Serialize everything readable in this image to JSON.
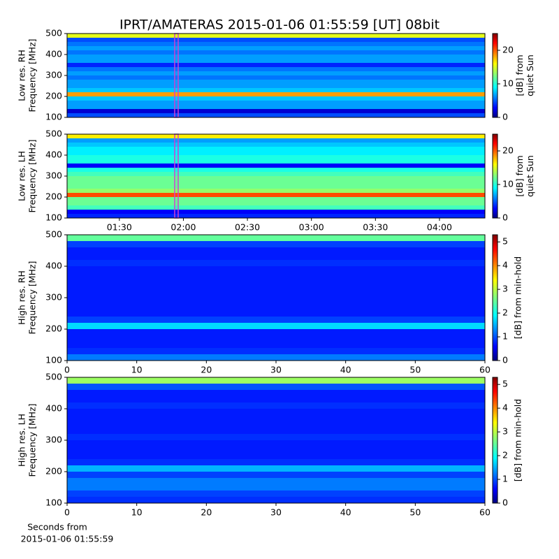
{
  "chart_data": [
    {
      "type": "heatmap",
      "title": "IPRT/AMATERAS 2015-01-06 01:55:59 [UT]   08bit",
      "ylabel": [
        "Low res. RH",
        "Frequency [MHz]"
      ],
      "xlim": [
        65.5,
        261.3
      ],
      "ylim": [
        100,
        500
      ],
      "yticks": [
        100,
        200,
        300,
        400,
        500
      ],
      "y_edges": [
        100,
        120,
        140,
        160,
        180,
        200,
        220,
        240,
        260,
        280,
        300,
        320,
        340,
        360,
        380,
        400,
        420,
        440,
        460,
        480,
        500
      ],
      "values": [
        5,
        2,
        7,
        7,
        8,
        18,
        8,
        7,
        7,
        6,
        7,
        6,
        4,
        7,
        7,
        6,
        7,
        6,
        5,
        15
      ],
      "colorbar": {
        "lim": [
          0,
          25
        ],
        "ticks": [
          0,
          10,
          20
        ],
        "label": [
          "[dB] from",
          "quiet Sun"
        ]
      }
    },
    {
      "type": "heatmap",
      "ylabel": [
        "Low res. LH",
        "Frequency [MHz]"
      ],
      "xlim": [
        65.5,
        261.3
      ],
      "xticks": [
        {
          "value": 90,
          "label": "01:30"
        },
        {
          "value": 120,
          "label": "02:00"
        },
        {
          "value": 150,
          "label": "02:30"
        },
        {
          "value": 180,
          "label": "03:00"
        },
        {
          "value": 210,
          "label": "03:30"
        },
        {
          "value": 240,
          "label": "04:00"
        }
      ],
      "ylim": [
        100,
        500
      ],
      "yticks": [
        100,
        200,
        300,
        400,
        500
      ],
      "y_edges": [
        100,
        120,
        140,
        160,
        180,
        200,
        220,
        240,
        260,
        280,
        300,
        320,
        340,
        360,
        380,
        400,
        420,
        440,
        460,
        480,
        500
      ],
      "values": [
        4,
        3,
        11,
        12,
        12,
        20,
        13,
        12,
        12,
        12,
        11,
        10,
        3,
        10,
        10,
        9,
        9,
        8,
        7,
        16
      ],
      "colorbar": {
        "lim": [
          0,
          25
        ],
        "ticks": [
          0,
          10,
          20
        ],
        "label": [
          "[dB] from",
          "quiet Sun"
        ]
      }
    },
    {
      "type": "heatmap",
      "ylabel": [
        "High res. RH",
        "Frequency [MHz]"
      ],
      "xlim": [
        0,
        60
      ],
      "xticks": [
        0,
        10,
        20,
        30,
        40,
        50,
        60
      ],
      "ylim": [
        100,
        500
      ],
      "yticks": [
        100,
        200,
        300,
        400,
        500
      ],
      "y_edges": [
        100,
        120,
        140,
        160,
        180,
        200,
        220,
        240,
        260,
        280,
        300,
        320,
        340,
        360,
        380,
        400,
        420,
        440,
        460,
        480,
        500
      ],
      "values": [
        1.3,
        0.9,
        0.8,
        0.8,
        0.8,
        1.8,
        1.0,
        0.8,
        0.8,
        0.8,
        0.8,
        0.8,
        0.8,
        0.8,
        0.8,
        0.9,
        0.8,
        0.8,
        1.0,
        2.5
      ],
      "colorbar": {
        "lim": [
          0,
          5.3
        ],
        "ticks": [
          0,
          1,
          2,
          3,
          4,
          5
        ],
        "label": [
          "[dB] from min-hold"
        ]
      }
    },
    {
      "type": "heatmap",
      "ylabel": [
        "High res. LH",
        "Frequency [MHz]"
      ],
      "xlabel": [
        "Seconds from",
        "2015-01-06 01:55:59"
      ],
      "xlim": [
        0,
        60
      ],
      "xticks": [
        0,
        10,
        20,
        30,
        40,
        50,
        60
      ],
      "ylim": [
        100,
        500
      ],
      "yticks": [
        100,
        200,
        300,
        400,
        500
      ],
      "y_edges": [
        100,
        120,
        140,
        160,
        180,
        200,
        220,
        240,
        260,
        280,
        300,
        320,
        340,
        360,
        380,
        400,
        420,
        440,
        460,
        480,
        500
      ],
      "values": [
        0.9,
        1.0,
        1.3,
        1.3,
        1.0,
        1.6,
        0.9,
        0.8,
        0.8,
        0.8,
        0.9,
        0.8,
        0.8,
        0.8,
        0.8,
        0.9,
        0.8,
        0.8,
        1.1,
        2.8
      ],
      "colorbar": {
        "lim": [
          0,
          5.3
        ],
        "ticks": [
          0,
          1,
          2,
          3,
          4,
          5
        ],
        "label": [
          "[dB] from min-hold"
        ]
      }
    }
  ]
}
